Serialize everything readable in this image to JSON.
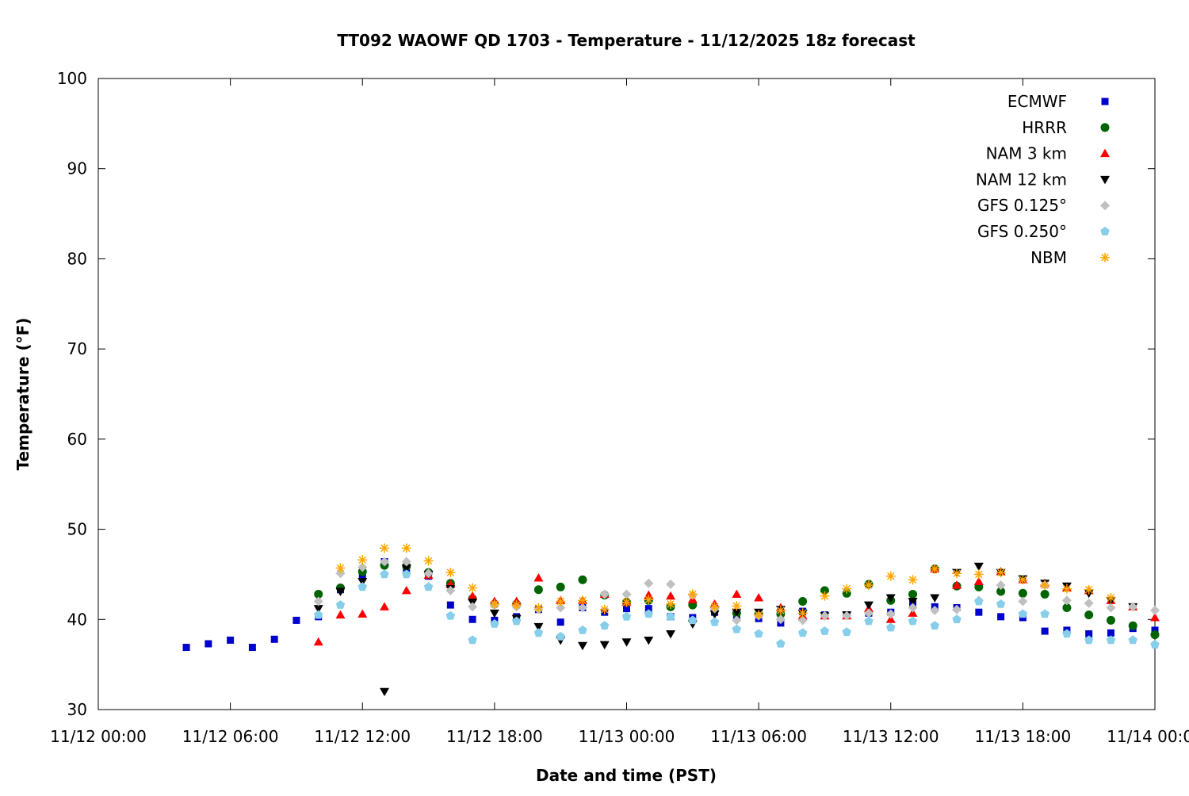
{
  "chart_data": {
    "type": "scatter",
    "title": "TT092 WAOWF QD 1703 - Temperature - 11/12/2025 18z forecast",
    "xlabel": "Date and time (PST)",
    "ylabel": "Temperature (°F)",
    "x_unit": "hours since 11/12 00:00",
    "xlim": [
      0,
      48
    ],
    "ylim": [
      30,
      100
    ],
    "y_ticks": [
      30,
      40,
      50,
      60,
      70,
      80,
      90,
      100
    ],
    "x_ticks": [
      {
        "hour": 0,
        "label": "11/12 00:00"
      },
      {
        "hour": 6,
        "label": "11/12 06:00"
      },
      {
        "hour": 12,
        "label": "11/12 12:00"
      },
      {
        "hour": 18,
        "label": "11/12 18:00"
      },
      {
        "hour": 24,
        "label": "11/13 00:00"
      },
      {
        "hour": 30,
        "label": "11/13 06:00"
      },
      {
        "hour": 36,
        "label": "11/13 12:00"
      },
      {
        "hour": 42,
        "label": "11/13 18:00"
      },
      {
        "hour": 48,
        "label": "11/14 00:00"
      }
    ],
    "grid": false,
    "legend_position": "top-right",
    "series": [
      {
        "name": "ECMWF",
        "marker": "square",
        "color": "#0000cc",
        "start_hour": 4,
        "values": [
          36.9,
          37.3,
          37.7,
          36.9,
          37.8,
          39.9,
          40.3,
          43.3,
          44.7,
          46.4,
          45.6,
          44.8,
          41.6,
          40.0,
          39.9,
          40.3,
          41.1,
          39.7,
          41.3,
          40.8,
          41.2,
          41.2,
          40.3,
          40.2,
          40.8,
          40.3,
          40.1,
          39.6,
          40.9,
          40.5,
          40.5,
          40.7,
          40.8,
          41.8,
          41.4,
          41.3,
          40.8,
          40.3,
          40.2,
          38.7,
          38.8,
          38.4,
          38.5,
          39.0,
          38.8
        ]
      },
      {
        "name": "HRRR",
        "marker": "circle",
        "color": "#006400",
        "start_hour": 10,
        "values": [
          42.8,
          43.5,
          45.3,
          46.0,
          45.9,
          45.2,
          44.0,
          42.3,
          41.7,
          41.7,
          43.3,
          43.6,
          44.4,
          42.7,
          41.9,
          42.1,
          41.4,
          41.6,
          41.3,
          40.7,
          40.6,
          40.6,
          42.0,
          43.2,
          42.9,
          43.9,
          42.1,
          42.8,
          45.6,
          43.7,
          43.6,
          43.1,
          42.9,
          42.8,
          41.3,
          40.5,
          39.9,
          39.3,
          38.3
        ]
      },
      {
        "name": "NAM 3 km",
        "marker": "triangle-up",
        "color": "#ff0000",
        "start_hour": 10,
        "values": [
          37.5,
          40.5,
          40.6,
          41.4,
          43.2,
          44.9,
          43.9,
          42.6,
          42.0,
          42.0,
          44.6,
          42.1,
          42.1,
          42.8,
          41.9,
          42.7,
          42.6,
          42.2,
          41.7,
          42.8,
          42.4,
          41.3,
          40.4,
          40.4,
          40.4,
          41.2,
          40.0,
          40.7,
          45.6,
          43.8,
          44.2,
          45.3,
          44.4,
          44.0,
          43.5,
          43.2,
          42.1,
          41.4,
          40.2
        ]
      },
      {
        "name": "NAM 12 km",
        "marker": "triangle-down",
        "color": "#000000",
        "start_hour": 10,
        "values": [
          41.2,
          43.1,
          44.2,
          32.0,
          45.7,
          45.0,
          43.4,
          41.9,
          40.7,
          40.1,
          39.2,
          37.7,
          37.1,
          37.2,
          37.5,
          37.7,
          38.4,
          39.5,
          40.6,
          40.8,
          40.8,
          41.1,
          40.7,
          40.4,
          40.5,
          41.6,
          42.4,
          42.0,
          42.4,
          45.2,
          45.9,
          45.2,
          44.5,
          44.0,
          43.7,
          42.9,
          42.1,
          41.4
        ]
      },
      {
        "name": "GFS 0.125°",
        "marker": "diamond",
        "color": "#c0c0c0",
        "start_hour": 10,
        "values": [
          42.0,
          45.1,
          45.8,
          46.4,
          46.4,
          45.1,
          43.2,
          41.4,
          41.6,
          41.4,
          41.1,
          41.3,
          41.3,
          42.8,
          42.8,
          44.0,
          43.9,
          42.7,
          41.2,
          39.9,
          40.4,
          40.0,
          39.9,
          40.4,
          40.4,
          40.7,
          40.6,
          41.3,
          41.0,
          41.1,
          42.1,
          43.8,
          42.0,
          43.8,
          42.1,
          41.8,
          41.3,
          41.4,
          41.0
        ]
      },
      {
        "name": "GFS 0.250°",
        "marker": "pentagon",
        "color": "#87ceeb",
        "start_hour": 10,
        "values": [
          40.5,
          41.6,
          43.6,
          45.0,
          45.0,
          43.6,
          40.4,
          37.7,
          39.5,
          39.8,
          38.5,
          38.1,
          38.8,
          39.3,
          40.3,
          40.6,
          40.3,
          39.9,
          39.7,
          38.9,
          38.4,
          37.3,
          38.5,
          38.7,
          38.6,
          39.8,
          39.1,
          39.8,
          39.3,
          40.0,
          42.0,
          41.7,
          40.6,
          40.6,
          38.4,
          37.7,
          37.7,
          37.7,
          37.2
        ]
      },
      {
        "name": "NBM",
        "marker": "asterisk",
        "color": "#ffa500",
        "start_hour": 11,
        "values": [
          45.7,
          46.6,
          47.9,
          47.9,
          46.5,
          45.2,
          43.5,
          41.7,
          41.6,
          41.3,
          42.0,
          42.1,
          41.1,
          41.9,
          42.2,
          41.7,
          42.8,
          41.4,
          41.5,
          40.5,
          41.0,
          40.7,
          42.6,
          43.4,
          43.8,
          44.8,
          44.4,
          45.6,
          45.1,
          45.0,
          45.2,
          44.4,
          43.8,
          43.4,
          43.3,
          42.4
        ]
      }
    ]
  }
}
